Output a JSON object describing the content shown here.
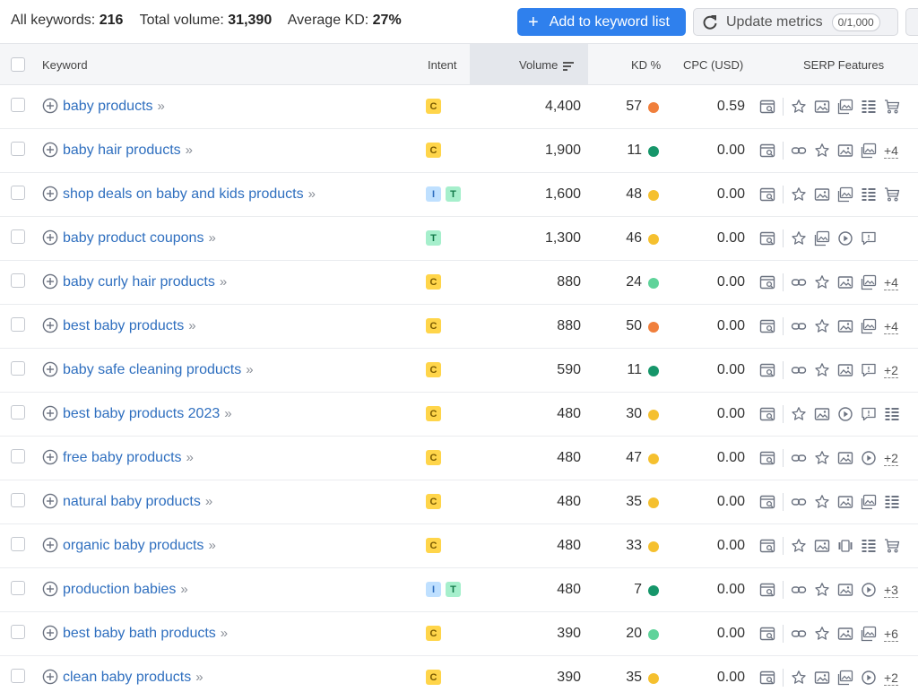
{
  "summary": {
    "all_keywords_label": "All keywords:",
    "all_keywords_value": "216",
    "total_volume_label": "Total volume:",
    "total_volume_value": "31,390",
    "avg_kd_label": "Average KD:",
    "avg_kd_value": "27%"
  },
  "toolbar": {
    "add_label": "Add to keyword list",
    "update_label": "Update metrics",
    "update_counter": "0/1,000"
  },
  "columns": {
    "keyword": "Keyword",
    "intent": "Intent",
    "volume": "Volume",
    "kd": "KD %",
    "cpc": "CPC (USD)",
    "serp": "SERP Features"
  },
  "colors": {
    "accent": "#2f80ed",
    "kd_orange": "#f07f3c",
    "kd_yellow": "#f5c02f",
    "kd_lightgreen": "#5fd39a",
    "kd_darkgreen": "#16966a"
  },
  "rows": [
    {
      "keyword": "baby products",
      "intent": [
        "C"
      ],
      "volume": "4,400",
      "kd": "57",
      "kd_color": "#f07f3c",
      "cpc": "0.59",
      "serp": [
        "sitelinks-serp-icon",
        "sep",
        "star-icon",
        "image-icon",
        "image-pack-icon",
        "list-icon",
        "cart-icon"
      ],
      "more": ""
    },
    {
      "keyword": "baby hair products",
      "intent": [
        "C"
      ],
      "volume": "1,900",
      "kd": "11",
      "kd_color": "#16966a",
      "cpc": "0.00",
      "serp": [
        "sitelinks-serp-icon",
        "sep",
        "link-icon",
        "star-icon",
        "image-icon",
        "image-pack-icon"
      ],
      "more": "+4"
    },
    {
      "keyword": "shop deals on baby and kids products",
      "intent": [
        "I",
        "T"
      ],
      "volume": "1,600",
      "kd": "48",
      "kd_color": "#f5c02f",
      "cpc": "0.00",
      "serp": [
        "sitelinks-serp-icon",
        "sep",
        "star-icon",
        "image-icon",
        "image-pack-icon",
        "list-icon",
        "cart-icon"
      ],
      "more": ""
    },
    {
      "keyword": "baby product coupons",
      "intent": [
        "T"
      ],
      "volume": "1,300",
      "kd": "46",
      "kd_color": "#f5c02f",
      "cpc": "0.00",
      "serp": [
        "sitelinks-serp-icon",
        "sep",
        "star-icon",
        "image-pack-icon",
        "video-icon",
        "faq-icon"
      ],
      "more": ""
    },
    {
      "keyword": "baby curly hair products",
      "intent": [
        "C"
      ],
      "volume": "880",
      "kd": "24",
      "kd_color": "#5fd39a",
      "cpc": "0.00",
      "serp": [
        "sitelinks-serp-icon",
        "sep",
        "link-icon",
        "star-icon",
        "image-icon",
        "image-pack-icon"
      ],
      "more": "+4"
    },
    {
      "keyword": "best baby products",
      "intent": [
        "C"
      ],
      "volume": "880",
      "kd": "50",
      "kd_color": "#f07f3c",
      "cpc": "0.00",
      "serp": [
        "sitelinks-serp-icon",
        "sep",
        "link-icon",
        "star-icon",
        "image-icon",
        "image-pack-icon"
      ],
      "more": "+4"
    },
    {
      "keyword": "baby safe cleaning products",
      "intent": [
        "C"
      ],
      "volume": "590",
      "kd": "11",
      "kd_color": "#16966a",
      "cpc": "0.00",
      "serp": [
        "sitelinks-serp-icon",
        "sep",
        "link-icon",
        "star-icon",
        "image-icon",
        "faq-icon"
      ],
      "more": "+2"
    },
    {
      "keyword": "best baby products 2023",
      "intent": [
        "C"
      ],
      "volume": "480",
      "kd": "30",
      "kd_color": "#f5c02f",
      "cpc": "0.00",
      "serp": [
        "sitelinks-serp-icon",
        "sep",
        "star-icon",
        "image-icon",
        "video-icon",
        "faq-icon",
        "list-icon"
      ],
      "more": ""
    },
    {
      "keyword": "free baby products",
      "intent": [
        "C"
      ],
      "volume": "480",
      "kd": "47",
      "kd_color": "#f5c02f",
      "cpc": "0.00",
      "serp": [
        "sitelinks-serp-icon",
        "sep",
        "link-icon",
        "star-icon",
        "image-icon",
        "video-icon"
      ],
      "more": "+2"
    },
    {
      "keyword": "natural baby products",
      "intent": [
        "C"
      ],
      "volume": "480",
      "kd": "35",
      "kd_color": "#f5c02f",
      "cpc": "0.00",
      "serp": [
        "sitelinks-serp-icon",
        "sep",
        "link-icon",
        "star-icon",
        "image-icon",
        "image-pack-icon",
        "list-icon"
      ],
      "more": ""
    },
    {
      "keyword": "organic baby products",
      "intent": [
        "C"
      ],
      "volume": "480",
      "kd": "33",
      "kd_color": "#f5c02f",
      "cpc": "0.00",
      "serp": [
        "sitelinks-serp-icon",
        "sep",
        "star-icon",
        "image-icon",
        "carousel-icon",
        "list-icon",
        "cart-icon"
      ],
      "more": ""
    },
    {
      "keyword": "production babies",
      "intent": [
        "I",
        "T"
      ],
      "volume": "480",
      "kd": "7",
      "kd_color": "#16966a",
      "cpc": "0.00",
      "serp": [
        "sitelinks-serp-icon",
        "sep",
        "link-icon",
        "star-icon",
        "image-icon",
        "video-icon"
      ],
      "more": "+3"
    },
    {
      "keyword": "best baby bath products",
      "intent": [
        "C"
      ],
      "volume": "390",
      "kd": "20",
      "kd_color": "#5fd39a",
      "cpc": "0.00",
      "serp": [
        "sitelinks-serp-icon",
        "sep",
        "link-icon",
        "star-icon",
        "image-icon",
        "image-pack-icon"
      ],
      "more": "+6"
    },
    {
      "keyword": "clean baby products",
      "intent": [
        "C"
      ],
      "volume": "390",
      "kd": "35",
      "kd_color": "#f5c02f",
      "cpc": "0.00",
      "serp": [
        "sitelinks-serp-icon",
        "sep",
        "star-icon",
        "image-icon",
        "image-pack-icon",
        "video-icon"
      ],
      "more": "+2"
    }
  ]
}
